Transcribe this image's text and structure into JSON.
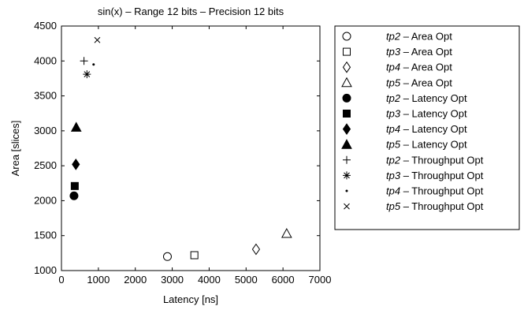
{
  "chart_data": {
    "type": "scatter",
    "title": "sin(x) – Range 12 bits – Precision 12 bits",
    "xlabel": "Latency [ns]",
    "ylabel": "Area [slices]",
    "xlim": [
      0,
      7000
    ],
    "ylim": [
      1000,
      4500
    ],
    "xticks": [
      0,
      1000,
      2000,
      3000,
      4000,
      5000,
      6000,
      7000
    ],
    "yticks": [
      1000,
      1500,
      2000,
      2500,
      3000,
      3500,
      4000,
      4500
    ],
    "grid": false,
    "legend_position": "outside-right",
    "series": [
      {
        "name": "tp2",
        "label_suffix": " – Area Opt",
        "marker": "circle-open",
        "points": [
          [
            2870,
            1200
          ]
        ]
      },
      {
        "name": "tp3",
        "label_suffix": " – Area Opt",
        "marker": "square-open",
        "points": [
          [
            3600,
            1220
          ]
        ]
      },
      {
        "name": "tp4",
        "label_suffix": " – Area Opt",
        "marker": "diamond-open",
        "points": [
          [
            5270,
            1305
          ]
        ]
      },
      {
        "name": "tp5",
        "label_suffix": " – Area Opt",
        "marker": "triangle-open",
        "points": [
          [
            6100,
            1530
          ]
        ]
      },
      {
        "name": "tp2",
        "label_suffix": " – Latency Opt",
        "marker": "circle-filled",
        "points": [
          [
            340,
            2070
          ]
        ]
      },
      {
        "name": "tp3",
        "label_suffix": " – Latency Opt",
        "marker": "square-filled",
        "points": [
          [
            360,
            2210
          ]
        ]
      },
      {
        "name": "tp4",
        "label_suffix": " – Latency Opt",
        "marker": "diamond-filled",
        "points": [
          [
            390,
            2520
          ]
        ]
      },
      {
        "name": "tp5",
        "label_suffix": " – Latency Opt",
        "marker": "triangle-filled",
        "points": [
          [
            400,
            3050
          ]
        ]
      },
      {
        "name": "tp2",
        "label_suffix": " – Throughput Opt",
        "marker": "plus",
        "points": [
          [
            610,
            4000
          ]
        ]
      },
      {
        "name": "tp3",
        "label_suffix": " – Throughput Opt",
        "marker": "asterisk",
        "points": [
          [
            690,
            3810
          ]
        ]
      },
      {
        "name": "tp4",
        "label_suffix": " – Throughput Opt",
        "marker": "dot",
        "points": [
          [
            870,
            3950
          ]
        ]
      },
      {
        "name": "tp5",
        "label_suffix": " – Throughput Opt",
        "marker": "x",
        "points": [
          [
            970,
            4300
          ]
        ]
      }
    ]
  }
}
